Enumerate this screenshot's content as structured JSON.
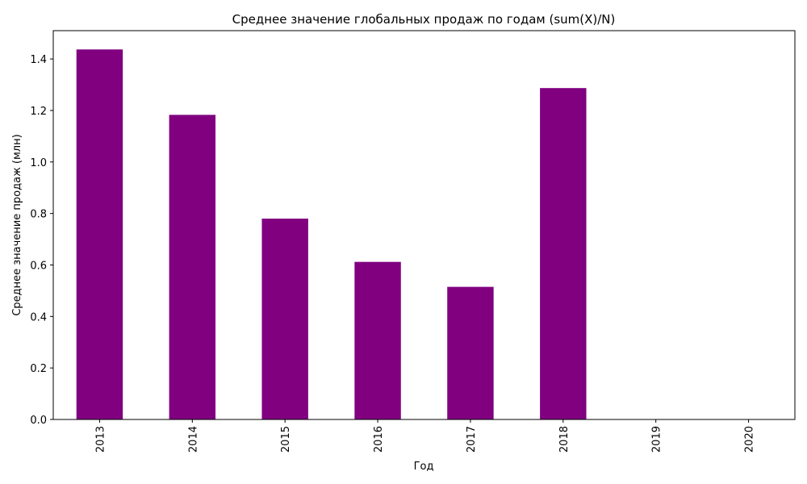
{
  "chart_data": {
    "type": "bar",
    "title": "Среднее значение глобальных продаж по годам (sum(X)/N)",
    "xlabel": "Год",
    "ylabel": "Среднее значение продаж (млн)",
    "categories": [
      "2013",
      "2014",
      "2015",
      "2016",
      "2017",
      "2018",
      "2019",
      "2020"
    ],
    "values": [
      1.437,
      1.183,
      0.78,
      0.612,
      0.515,
      1.287,
      0,
      0
    ],
    "ylim": [
      0,
      1.51
    ],
    "yticks": [
      0.0,
      0.2,
      0.4,
      0.6,
      0.8,
      1.0,
      1.2,
      1.4
    ],
    "ytick_labels": [
      "0.0",
      "0.2",
      "0.4",
      "0.6",
      "0.8",
      "1.0",
      "1.2",
      "1.4"
    ],
    "bar_color": "#800080",
    "grid": false,
    "legend": "none"
  }
}
